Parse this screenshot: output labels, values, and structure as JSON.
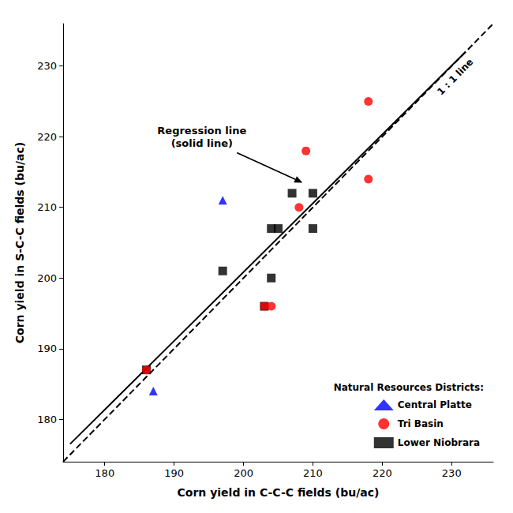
{
  "chart_data": {
    "type": "scatter",
    "xlabel": "Corn yield in C-C-C fields (bu/ac)",
    "ylabel": "Corn yield in S-C-C fields (bu/ac)",
    "xlim": [
      174,
      236
    ],
    "ylim": [
      174,
      236
    ],
    "xticks": [
      180,
      190,
      200,
      210,
      220,
      230
    ],
    "yticks": [
      180,
      190,
      200,
      210,
      220,
      230
    ],
    "grid": false,
    "legend": "lower right",
    "legend_title": "Natural Resources Districts:",
    "series": [
      {
        "type": "line",
        "color": "black",
        "line_style": "dashed",
        "x": [
          174,
          236
        ],
        "values": [
          174,
          236
        ]
      },
      {
        "type": "line",
        "color": "black",
        "line_style": "solid",
        "x": [
          175,
          232
        ],
        "values": [
          176.5,
          232
        ]
      },
      {
        "name": "Lower Niobrara",
        "type": "scatter",
        "color": "black",
        "marker": "square",
        "x": [
          186,
          197,
          203,
          204,
          205,
          207,
          210,
          204,
          210
        ],
        "values": [
          187,
          201,
          196,
          207,
          207,
          212,
          207,
          200,
          212
        ]
      },
      {
        "name": "Tri Basin",
        "type": "scatter",
        "color": "red",
        "marker": "circle",
        "x": [
          186,
          203,
          204,
          208,
          209,
          218,
          218
        ],
        "values": [
          187,
          196,
          196,
          210,
          218,
          225,
          214
        ]
      },
      {
        "name": "Central Platte",
        "type": "scatter",
        "color": "blue",
        "marker": "triangle",
        "x": [
          187,
          197
        ],
        "values": [
          184,
          211
        ]
      }
    ],
    "annotations": [
      {
        "text": "1 : 1 line",
        "x": 231,
        "y": 228
      },
      {
        "text": "Regression line\n(solid line)",
        "x": 194,
        "y": 220,
        "arrow_x": 208.5,
        "arrow_y": 213.5
      }
    ]
  }
}
